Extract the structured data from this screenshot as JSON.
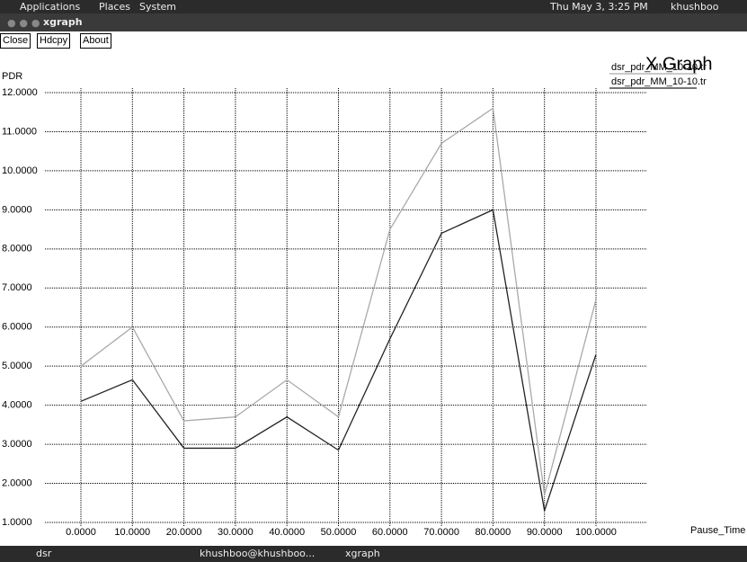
{
  "top_panel": {
    "menus": [
      "Applications",
      "Places",
      "System"
    ],
    "clock": "Thu May 3,  3:25 PM",
    "user": "khushboo"
  },
  "window": {
    "title": "xgraph",
    "buttons": [
      "Close",
      "Hdcpy",
      "About"
    ]
  },
  "chart_data": {
    "type": "line",
    "title": "X Graph",
    "ylabel": "PDR",
    "xlabel": "Pause_Time",
    "x": [
      0,
      10,
      20,
      30,
      40,
      50,
      60,
      70,
      80,
      90,
      100
    ],
    "series": [
      {
        "name": "dsr_pdr_MM_10-10.tr",
        "color": "#aaaaaa",
        "values": [
          5.0,
          6.0,
          3.6,
          3.7,
          4.65,
          3.7,
          8.5,
          10.7,
          11.6,
          1.7,
          6.7
        ]
      },
      {
        "name": "dsr_pdr_MM_10-10.tr",
        "color": "#222222",
        "values": [
          4.1,
          4.65,
          2.9,
          2.9,
          3.7,
          2.85,
          5.7,
          8.4,
          9.0,
          1.3,
          5.3
        ]
      }
    ],
    "xlim": [
      0,
      100
    ],
    "ylim": [
      1,
      12
    ],
    "xticks": [
      {
        "value": 0,
        "label": "0.0000"
      },
      {
        "value": 10,
        "label": "10.0000"
      },
      {
        "value": 20,
        "label": "20.0000"
      },
      {
        "value": 30,
        "label": "30.0000"
      },
      {
        "value": 40,
        "label": "40.0000"
      },
      {
        "value": 50,
        "label": "50.0000"
      },
      {
        "value": 60,
        "label": "60.0000"
      },
      {
        "value": 70,
        "label": "70.0000"
      },
      {
        "value": 80,
        "label": "80.0000"
      },
      {
        "value": 90,
        "label": "90.0000"
      },
      {
        "value": 100,
        "label": "100.0000"
      }
    ],
    "yticks": [
      {
        "value": 1,
        "label": "1.0000"
      },
      {
        "value": 2,
        "label": "2.0000"
      },
      {
        "value": 3,
        "label": "3.0000"
      },
      {
        "value": 4,
        "label": "4.0000"
      },
      {
        "value": 5,
        "label": "5.0000"
      },
      {
        "value": 6,
        "label": "6.0000"
      },
      {
        "value": 7,
        "label": "7.0000"
      },
      {
        "value": 8,
        "label": "8.0000"
      },
      {
        "value": 9,
        "label": "9.0000"
      },
      {
        "value": 10,
        "label": "10.0000"
      },
      {
        "value": 11,
        "label": "11.0000"
      },
      {
        "value": 12,
        "label": "12.0000"
      }
    ],
    "grid": true
  },
  "taskbar": {
    "items": [
      "dsr",
      "khushboo@khushboo...",
      "xgraph"
    ]
  }
}
